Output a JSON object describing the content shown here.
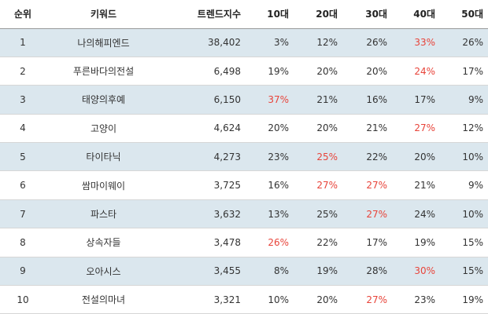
{
  "headers": {
    "rank": "순위",
    "keyword": "키워드",
    "trend_index": "트렌드지수",
    "age10": "10대",
    "age20": "20대",
    "age30": "30대",
    "age40": "40대",
    "age50": "50대"
  },
  "highlight_color": "#e8443a",
  "rows": [
    {
      "rank": "1",
      "keyword": "나의해피엔드",
      "trend_index": "38,402",
      "age10": "3%",
      "age20": "12%",
      "age30": "26%",
      "age40": "33%",
      "age50": "26%",
      "highlight": "age40"
    },
    {
      "rank": "2",
      "keyword": "푸른바다의전설",
      "trend_index": "6,498",
      "age10": "19%",
      "age20": "20%",
      "age30": "20%",
      "age40": "24%",
      "age50": "17%",
      "highlight": "age40"
    },
    {
      "rank": "3",
      "keyword": "태양의후예",
      "trend_index": "6,150",
      "age10": "37%",
      "age20": "21%",
      "age30": "16%",
      "age40": "17%",
      "age50": "9%",
      "highlight": "age10"
    },
    {
      "rank": "4",
      "keyword": "고양이",
      "trend_index": "4,624",
      "age10": "20%",
      "age20": "20%",
      "age30": "21%",
      "age40": "27%",
      "age50": "12%",
      "highlight": "age40"
    },
    {
      "rank": "5",
      "keyword": "타이타닉",
      "trend_index": "4,273",
      "age10": "23%",
      "age20": "25%",
      "age30": "22%",
      "age40": "20%",
      "age50": "10%",
      "highlight": "age20"
    },
    {
      "rank": "6",
      "keyword": "쌈마이웨이",
      "trend_index": "3,725",
      "age10": "16%",
      "age20": "27%",
      "age30": "27%",
      "age40": "21%",
      "age50": "9%",
      "highlight": "age20,age30"
    },
    {
      "rank": "7",
      "keyword": "파스타",
      "trend_index": "3,632",
      "age10": "13%",
      "age20": "25%",
      "age30": "27%",
      "age40": "24%",
      "age50": "10%",
      "highlight": "age30"
    },
    {
      "rank": "8",
      "keyword": "상속자들",
      "trend_index": "3,478",
      "age10": "26%",
      "age20": "22%",
      "age30": "17%",
      "age40": "19%",
      "age50": "15%",
      "highlight": "age10"
    },
    {
      "rank": "9",
      "keyword": "오아시스",
      "trend_index": "3,455",
      "age10": "8%",
      "age20": "19%",
      "age30": "28%",
      "age40": "30%",
      "age50": "15%",
      "highlight": "age40"
    },
    {
      "rank": "10",
      "keyword": "전설의마녀",
      "trend_index": "3,321",
      "age10": "10%",
      "age20": "20%",
      "age30": "27%",
      "age40": "23%",
      "age50": "19%",
      "highlight": "age30"
    }
  ]
}
